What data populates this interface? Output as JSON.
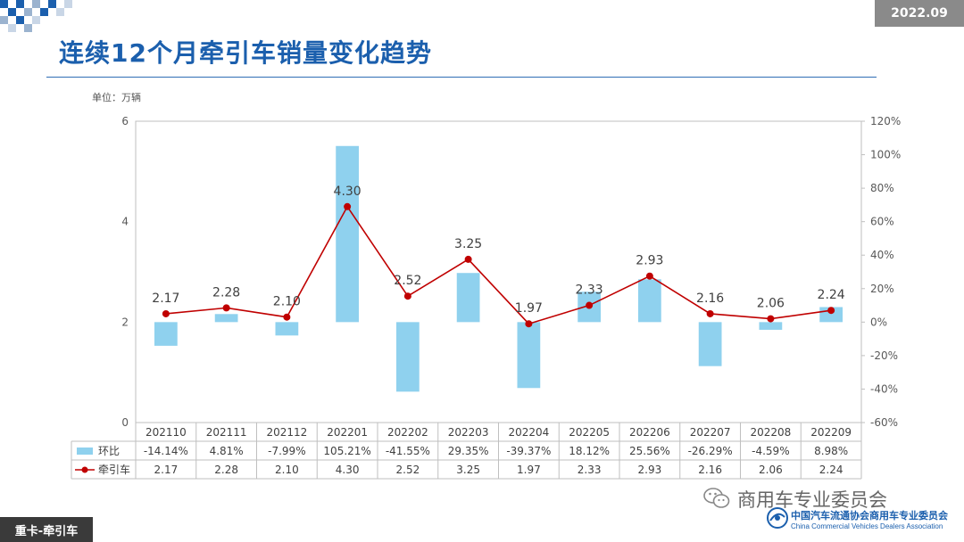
{
  "header": {
    "period": "2022.09",
    "title": "连续12个月牵引车销量变化趋势",
    "unit": "单位：万辆"
  },
  "footer": {
    "section_tag": "重卡-牵引车",
    "wechat_name": "商用车专业委员会",
    "association_cn": "中国汽车流通协会商用车专业委员会",
    "association_en": "China Commercial Vehicles Dealers Association"
  },
  "colors": {
    "title": "#1b5fad",
    "bar": "#8fd1ee",
    "line": "#c00000",
    "axis": "#bfbfbf",
    "text": "#404040"
  },
  "chart_data": {
    "type": "bar+line",
    "categories": [
      "202110",
      "202111",
      "202112",
      "202201",
      "202202",
      "202203",
      "202204",
      "202205",
      "202206",
      "202207",
      "202208",
      "202209"
    ],
    "series": [
      {
        "name": "环比",
        "type": "bar",
        "axis": "right",
        "values": [
          -14.14,
          4.81,
          -7.99,
          105.21,
          -41.55,
          29.35,
          -39.37,
          18.12,
          25.56,
          -26.29,
          -4.59,
          8.98
        ],
        "labels": [
          "-14.14%",
          "4.81%",
          "-7.99%",
          "105.21%",
          "-41.55%",
          "29.35%",
          "-39.37%",
          "18.12%",
          "25.56%",
          "-26.29%",
          "-4.59%",
          "8.98%"
        ]
      },
      {
        "name": "牵引车",
        "type": "line",
        "axis": "right",
        "values": [
          2.17,
          2.28,
          2.1,
          4.3,
          2.52,
          3.25,
          1.97,
          2.33,
          2.93,
          2.16,
          2.06,
          2.24
        ],
        "labels": [
          "2.17",
          "2.28",
          "2.10",
          "4.30",
          "2.52",
          "3.25",
          "1.97",
          "2.33",
          "2.93",
          "2.16",
          "2.06",
          "2.24"
        ],
        "right_axis_percent": [
          5,
          8.5,
          3,
          69,
          15.5,
          37.5,
          -1,
          10,
          27.5,
          5,
          2,
          7
        ]
      }
    ],
    "left_axis": {
      "ylim": [
        0,
        6
      ],
      "ticks": [
        "0",
        "2",
        "4",
        "6"
      ]
    },
    "right_axis": {
      "ylim": [
        -60,
        120
      ],
      "ticks": [
        "-60%",
        "-40%",
        "-20%",
        "0%",
        "20%",
        "40%",
        "60%",
        "80%",
        "100%",
        "120%"
      ]
    },
    "grid": false,
    "legend": "data-table-below"
  }
}
